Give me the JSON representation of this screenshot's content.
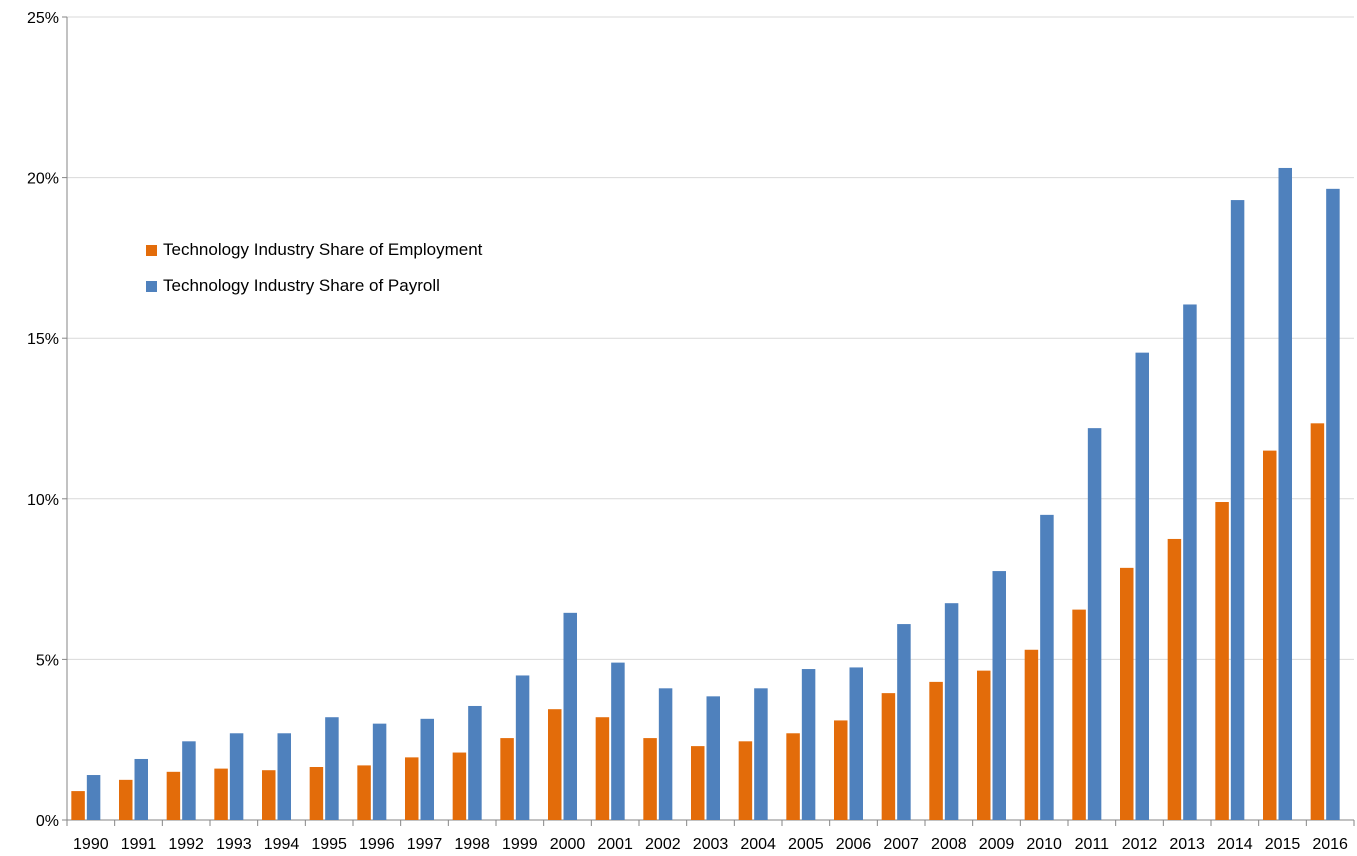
{
  "chart_data": {
    "type": "bar",
    "categories": [
      "1990",
      "1991",
      "1992",
      "1993",
      "1994",
      "1995",
      "1996",
      "1997",
      "1998",
      "1999",
      "2000",
      "2001",
      "2002",
      "2003",
      "2004",
      "2005",
      "2006",
      "2007",
      "2008",
      "2009",
      "2010",
      "2011",
      "2012",
      "2013",
      "2014",
      "2015",
      "2016"
    ],
    "series": [
      {
        "name": "Technology Industry Share of Employment",
        "color": "#E36C0A",
        "values": [
          0.9,
          1.25,
          1.5,
          1.6,
          1.55,
          1.65,
          1.7,
          1.95,
          2.1,
          2.55,
          3.45,
          3.2,
          2.55,
          2.3,
          2.45,
          2.7,
          3.1,
          3.95,
          4.3,
          4.65,
          5.3,
          6.55,
          7.85,
          8.75,
          9.9,
          11.5,
          12.35
        ]
      },
      {
        "name": "Technology Industry Share of Payroll",
        "color": "#4F81BD",
        "values": [
          1.4,
          1.9,
          2.45,
          2.7,
          2.7,
          3.2,
          3.0,
          3.15,
          3.55,
          4.5,
          6.45,
          4.9,
          4.1,
          3.85,
          4.1,
          4.7,
          4.75,
          6.1,
          6.75,
          7.75,
          9.5,
          12.2,
          14.55,
          16.05,
          19.3,
          20.3,
          19.65
        ]
      }
    ],
    "y_ticks": [
      "0%",
      "5%",
      "10%",
      "15%",
      "20%",
      "25%"
    ],
    "ylim": [
      0,
      25
    ],
    "y_unit": "%",
    "grid": true,
    "legend_position": "upper-left",
    "title": "",
    "xlabel": "",
    "ylabel": ""
  }
}
